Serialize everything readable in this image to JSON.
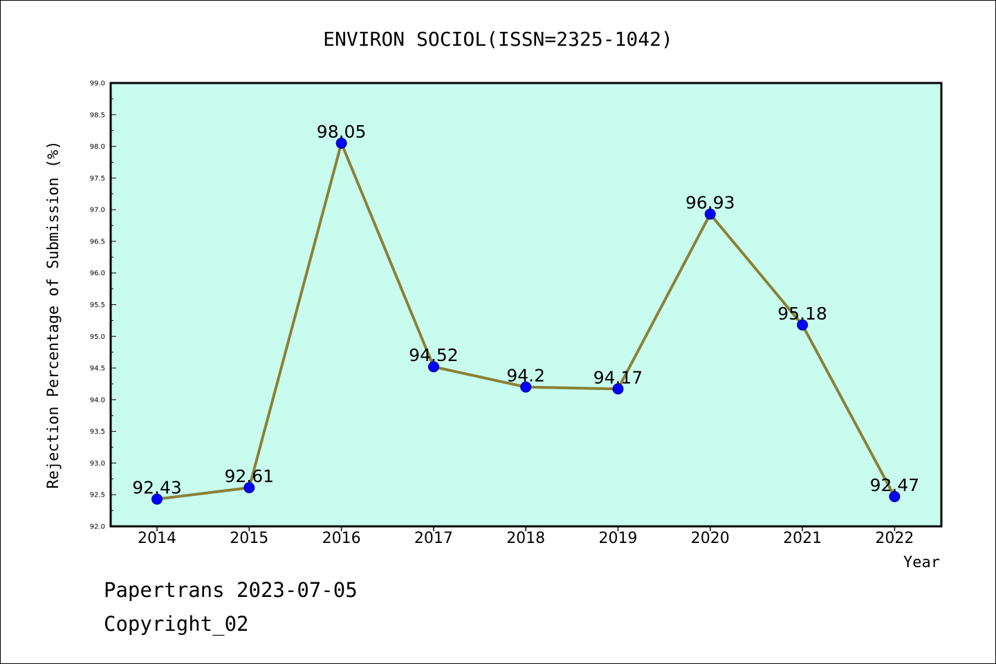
{
  "chart_data": {
    "type": "line",
    "title": "ENVIRON SOCIOL(ISSN=2325-1042)",
    "xlabel": "Year",
    "ylabel": "Rejection Percentage of Submission (%)",
    "categories": [
      "2014",
      "2015",
      "2016",
      "2017",
      "2018",
      "2019",
      "2020",
      "2021",
      "2022"
    ],
    "values": [
      92.43,
      92.61,
      98.05,
      94.52,
      94.2,
      94.17,
      96.93,
      95.18,
      92.47
    ],
    "data_labels": [
      "92.43",
      "92.61",
      "98.05",
      "94.52",
      "94.2",
      "94.17",
      "96.93",
      "95.18",
      "92.47"
    ],
    "ylim": [
      92.0,
      99.0
    ],
    "yticks": [
      92.0,
      92.5,
      93.0,
      93.5,
      94.0,
      94.5,
      95.0,
      95.5,
      96.0,
      96.5,
      97.0,
      97.5,
      98.0,
      98.5,
      99.0
    ],
    "ytick_labels": [
      "92.0",
      "92.5",
      "93.0",
      "93.5",
      "94.0",
      "94.5",
      "95.0",
      "95.5",
      "96.0",
      "96.5",
      "97.0",
      "97.5",
      "98.0",
      "98.5",
      "99.0"
    ],
    "grid": false,
    "colors": {
      "plot_background": "#c8fcee",
      "line": "#8b8036",
      "marker": "#0000ff",
      "marker_edge": "#00008b"
    }
  },
  "footer": {
    "line1": "Papertrans 2023-07-05",
    "line2": "Copyright_02"
  }
}
